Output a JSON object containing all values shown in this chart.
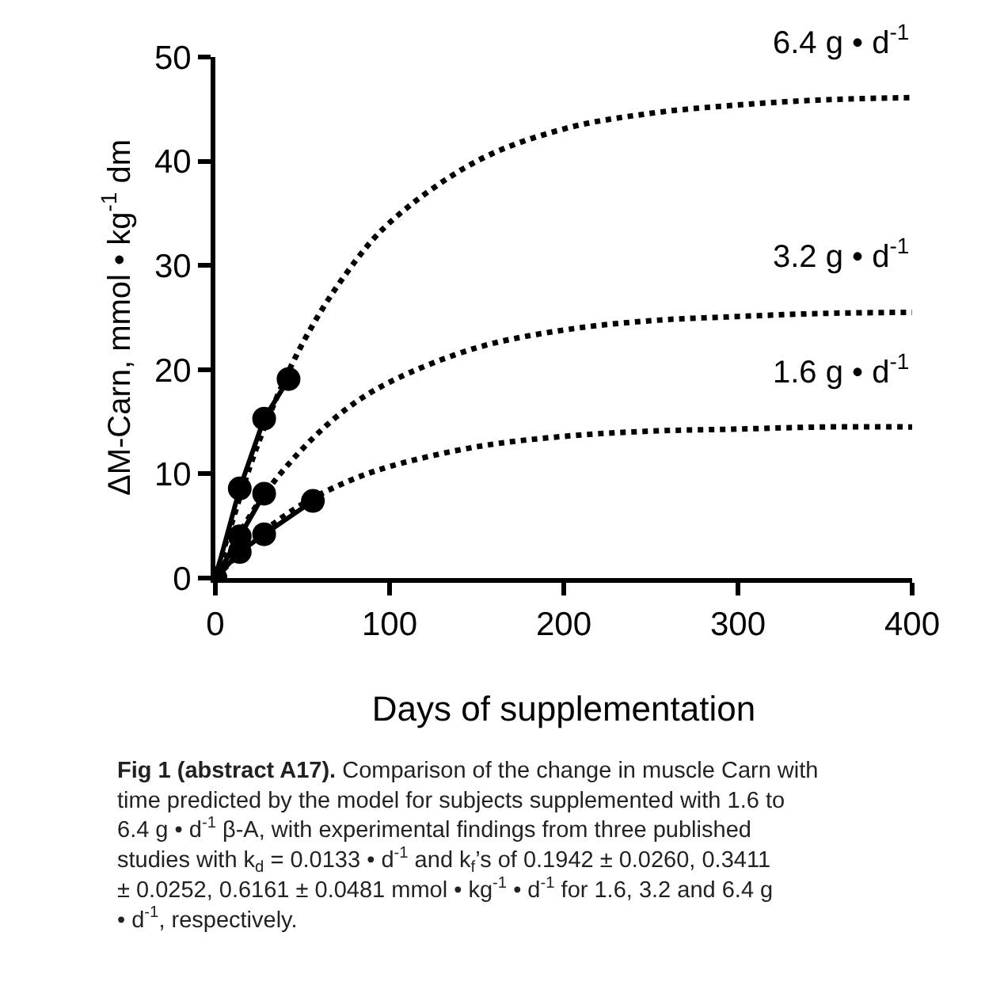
{
  "chart_data": {
    "type": "line",
    "xlabel": "Days of supplementation",
    "ylabel": "ΔM-Carn, mmol • kg$^{-1}$ dm",
    "xlim": [
      0,
      400
    ],
    "xticks": [
      0,
      100,
      200,
      300,
      400
    ],
    "ylim": [
      0,
      50
    ],
    "yticks": [
      0,
      10,
      20,
      30,
      40,
      50
    ],
    "grid": false,
    "series": [
      {
        "color": "#000000",
        "line_style": "dotted",
        "marker": "none",
        "x": [
          0,
          25,
          50,
          75,
          100,
          150,
          200,
          250,
          300,
          350,
          400
        ],
        "values": [
          0,
          13.1,
          22.5,
          29.2,
          34.1,
          40.0,
          43.1,
          44.6,
          45.4,
          45.9,
          46.1
        ]
      },
      {
        "color": "#000000",
        "line_style": "dotted",
        "marker": "none",
        "x": [
          0,
          25,
          50,
          75,
          100,
          150,
          200,
          250,
          300,
          350,
          400
        ],
        "values": [
          0,
          7.3,
          12.4,
          16.2,
          18.8,
          22.1,
          23.8,
          24.7,
          25.1,
          25.4,
          25.5
        ]
      },
      {
        "color": "#000000",
        "line_style": "dotted",
        "marker": "none",
        "x": [
          0,
          25,
          50,
          75,
          100,
          150,
          200,
          250,
          300,
          350,
          400
        ],
        "values": [
          0,
          4.1,
          7.1,
          9.2,
          10.7,
          12.6,
          13.6,
          14.1,
          14.3,
          14.5,
          14.5
        ]
      },
      {
        "color": "#000000",
        "line_style": "solid",
        "marker": "circle",
        "x": [
          0,
          14,
          28,
          42
        ],
        "values": [
          0,
          8.6,
          15.3,
          19.1
        ]
      },
      {
        "color": "#000000",
        "line_style": "solid",
        "marker": "circle",
        "x": [
          0,
          14,
          28
        ],
        "values": [
          0,
          4.0,
          8.1
        ]
      },
      {
        "color": "#000000",
        "line_style": "solid",
        "marker": "circle",
        "x": [
          0,
          14,
          28,
          56
        ],
        "values": [
          0,
          2.5,
          4.2,
          7.4
        ]
      }
    ],
    "annotations": [
      "6.4 g • d$^{-1}$",
      "3.2 g • d$^{-1}$",
      "1.6 g • d$^{-1}$",
      "Fig 1 (abstract A17).",
      "Comparison of the change in muscle Carn with time predicted by the model for subjects supplemented with 1.6 to 6.4 g • d$^{-1}$ β-A, with experimental findings from three published studies with k$_{d}$ = 0.0133 • d$^{-1}$ and k$_{f}$’s of 0.1942 ± 0.0260, 0.3411 ± 0.0252, 0.6161 ± 0.0481 mmol • kg$^{-1}$ • d$^{-1}$ for 1.6, 3.2 and 6.4 g • d$^{-1}$, respectively."
    ]
  }
}
